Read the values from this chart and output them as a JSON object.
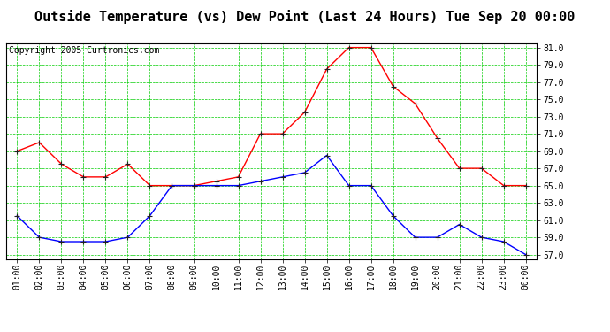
{
  "title": "Outside Temperature (vs) Dew Point (Last 24 Hours) Tue Sep 20 00:00",
  "copyright": "Copyright 2005 Curtronics.com",
  "x_labels": [
    "01:00",
    "02:00",
    "03:00",
    "04:00",
    "05:00",
    "06:00",
    "07:00",
    "08:00",
    "09:00",
    "10:00",
    "11:00",
    "12:00",
    "13:00",
    "14:00",
    "15:00",
    "16:00",
    "17:00",
    "18:00",
    "19:00",
    "20:00",
    "21:00",
    "22:00",
    "23:00",
    "00:00"
  ],
  "red_temp": [
    69.0,
    70.0,
    67.5,
    66.0,
    66.0,
    67.5,
    65.0,
    65.0,
    65.0,
    65.5,
    66.0,
    71.0,
    71.0,
    73.5,
    78.5,
    81.0,
    81.0,
    76.5,
    74.5,
    70.5,
    67.0,
    67.0,
    65.0,
    65.0
  ],
  "blue_dew": [
    61.5,
    59.0,
    58.5,
    58.5,
    58.5,
    59.0,
    61.5,
    65.0,
    65.0,
    65.0,
    65.0,
    65.5,
    66.0,
    66.5,
    68.5,
    65.0,
    65.0,
    61.5,
    59.0,
    59.0,
    60.5,
    59.0,
    58.5,
    57.0
  ],
  "red_color": "#ff0000",
  "blue_color": "#0000ff",
  "bg_color": "#ffffff",
  "plot_bg_color": "#ffffff",
  "grid_color": "#00cc00",
  "border_color": "#000000",
  "title_color": "#000000",
  "y_min": 57.0,
  "y_max": 81.0,
  "y_tick_interval": 2.0,
  "title_fontsize": 11,
  "copyright_fontsize": 7,
  "tick_fontsize": 7,
  "marker_size": 4,
  "line_width": 1.0,
  "fig_width": 6.9,
  "fig_height": 3.75,
  "dpi": 100
}
